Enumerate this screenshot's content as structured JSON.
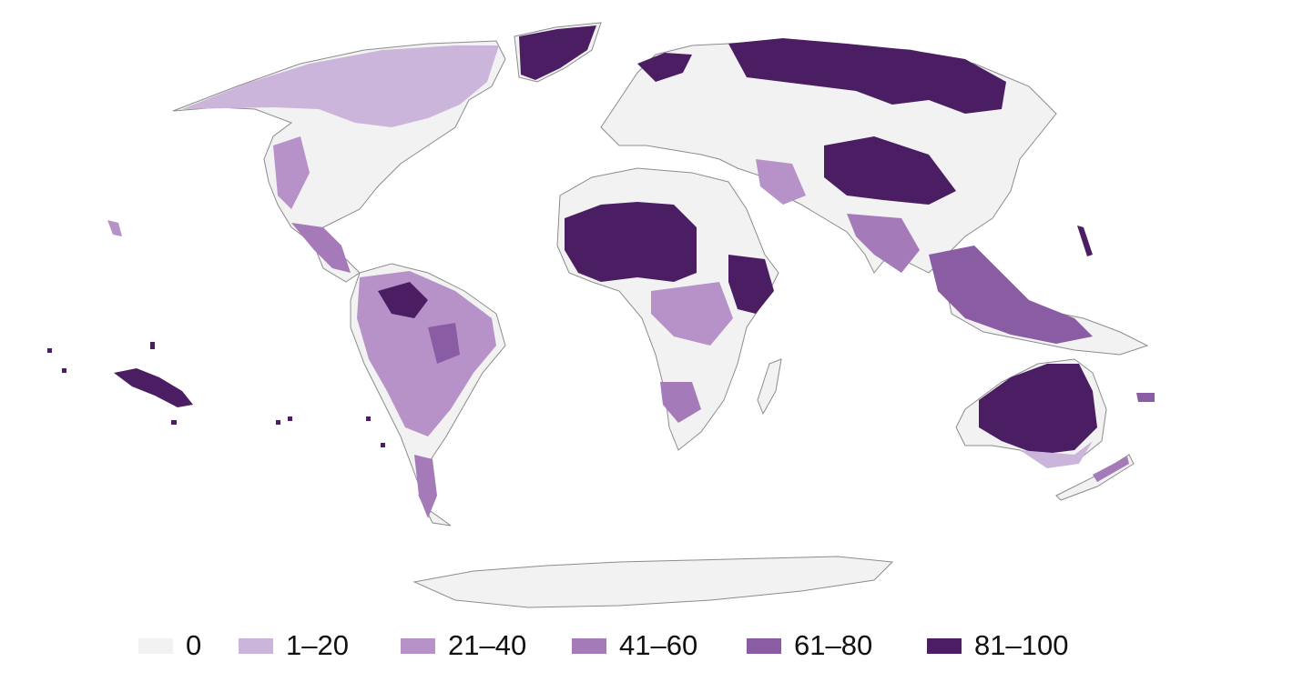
{
  "map": {
    "background": "#ffffff",
    "land_color": "#f2f2f2",
    "border_color": "#8c8c8c"
  },
  "legend": {
    "items": [
      {
        "label": "0",
        "color": "#f2f2f2"
      },
      {
        "label": "1–20",
        "color": "#cbb5da"
      },
      {
        "label": "21–40",
        "color": "#b792c8"
      },
      {
        "label": "41–60",
        "color": "#a47ab8"
      },
      {
        "label": "61–80",
        "color": "#8a5ca4"
      },
      {
        "label": "81–100",
        "color": "#4b1e63"
      }
    ]
  }
}
